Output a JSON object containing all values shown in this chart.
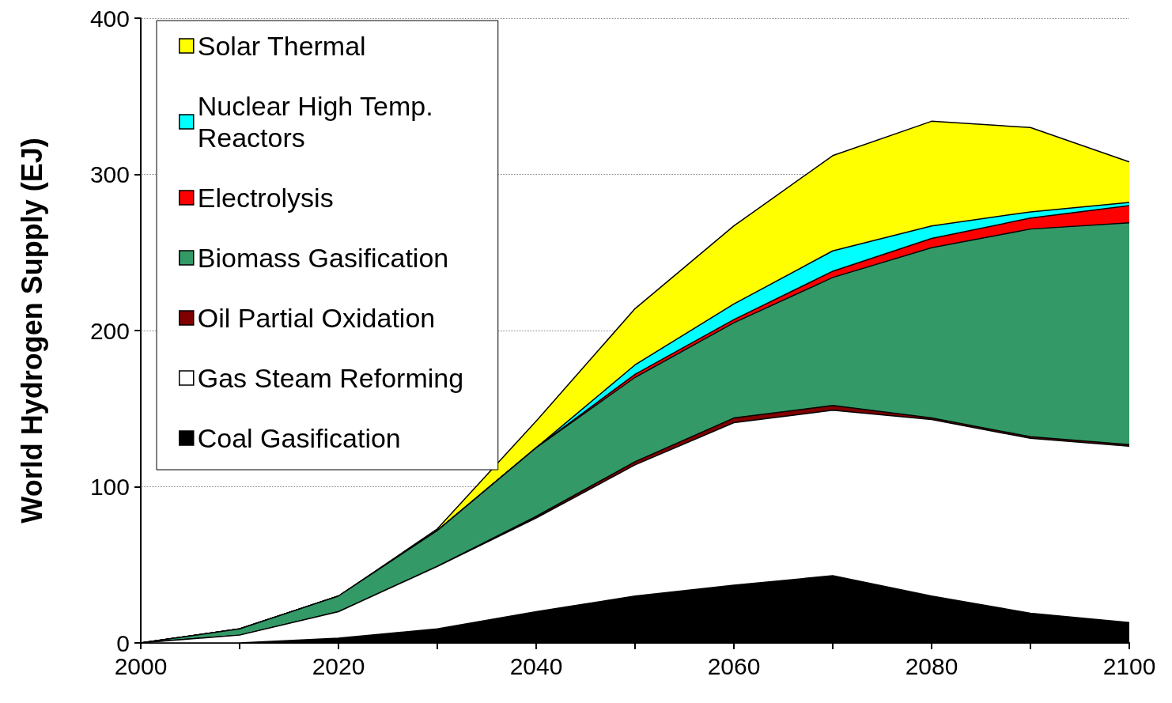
{
  "chart_data": {
    "type": "area",
    "stacked": true,
    "ylabel": "World Hydrogen Supply (EJ)",
    "x": [
      2000,
      2010,
      2020,
      2030,
      2040,
      2050,
      2060,
      2070,
      2080,
      2090,
      2100
    ],
    "xlim": [
      2000,
      2100
    ],
    "xticks": [
      2000,
      {
        "value": 2010,
        "label": null
      },
      2020,
      {
        "value": 2030,
        "label": null
      },
      2040,
      {
        "value": 2050,
        "label": null
      },
      2060,
      {
        "value": 2070,
        "label": null
      },
      2080,
      {
        "value": 2090,
        "label": null
      },
      2100
    ],
    "ylim": [
      0,
      400
    ],
    "yticks": [
      0,
      100,
      200,
      300,
      400
    ],
    "grid": "y",
    "legend": "top left",
    "line_style": "solid",
    "marker": "none",
    "series": [
      {
        "name": "Coal Gasification",
        "color": "#000000",
        "values": [
          0,
          0,
          3,
          9,
          20,
          30,
          37,
          43,
          30,
          19,
          13
        ]
      },
      {
        "name": "Gas Steam Reforming",
        "color": "#ffffff",
        "values": [
          0,
          5,
          17,
          40,
          60,
          84,
          104,
          106,
          113,
          112,
          113
        ]
      },
      {
        "name": "Oil Partial Oxidation",
        "color": "#800000",
        "values": [
          0,
          0,
          0,
          0,
          1,
          2,
          3,
          3,
          1,
          1,
          1
        ]
      },
      {
        "name": "Biomass Gasification",
        "color": "#339966",
        "values": [
          0,
          4,
          10,
          23,
          44,
          54,
          61,
          82,
          109,
          133,
          142
        ]
      },
      {
        "name": "Electrolysis",
        "color": "#ff0000",
        "values": [
          0,
          0,
          0,
          0,
          0,
          2,
          2,
          4,
          6,
          7,
          11
        ]
      },
      {
        "name": "Nuclear High Temp. Reactors",
        "color": "#00ffff",
        "values": [
          0,
          0,
          0,
          0,
          0,
          6,
          10,
          13,
          8,
          4,
          2
        ]
      },
      {
        "name": "Solar Thermal",
        "color": "#ffff00",
        "values": [
          0,
          0,
          0,
          1,
          17,
          36,
          50,
          61,
          67,
          54,
          26
        ]
      }
    ]
  }
}
